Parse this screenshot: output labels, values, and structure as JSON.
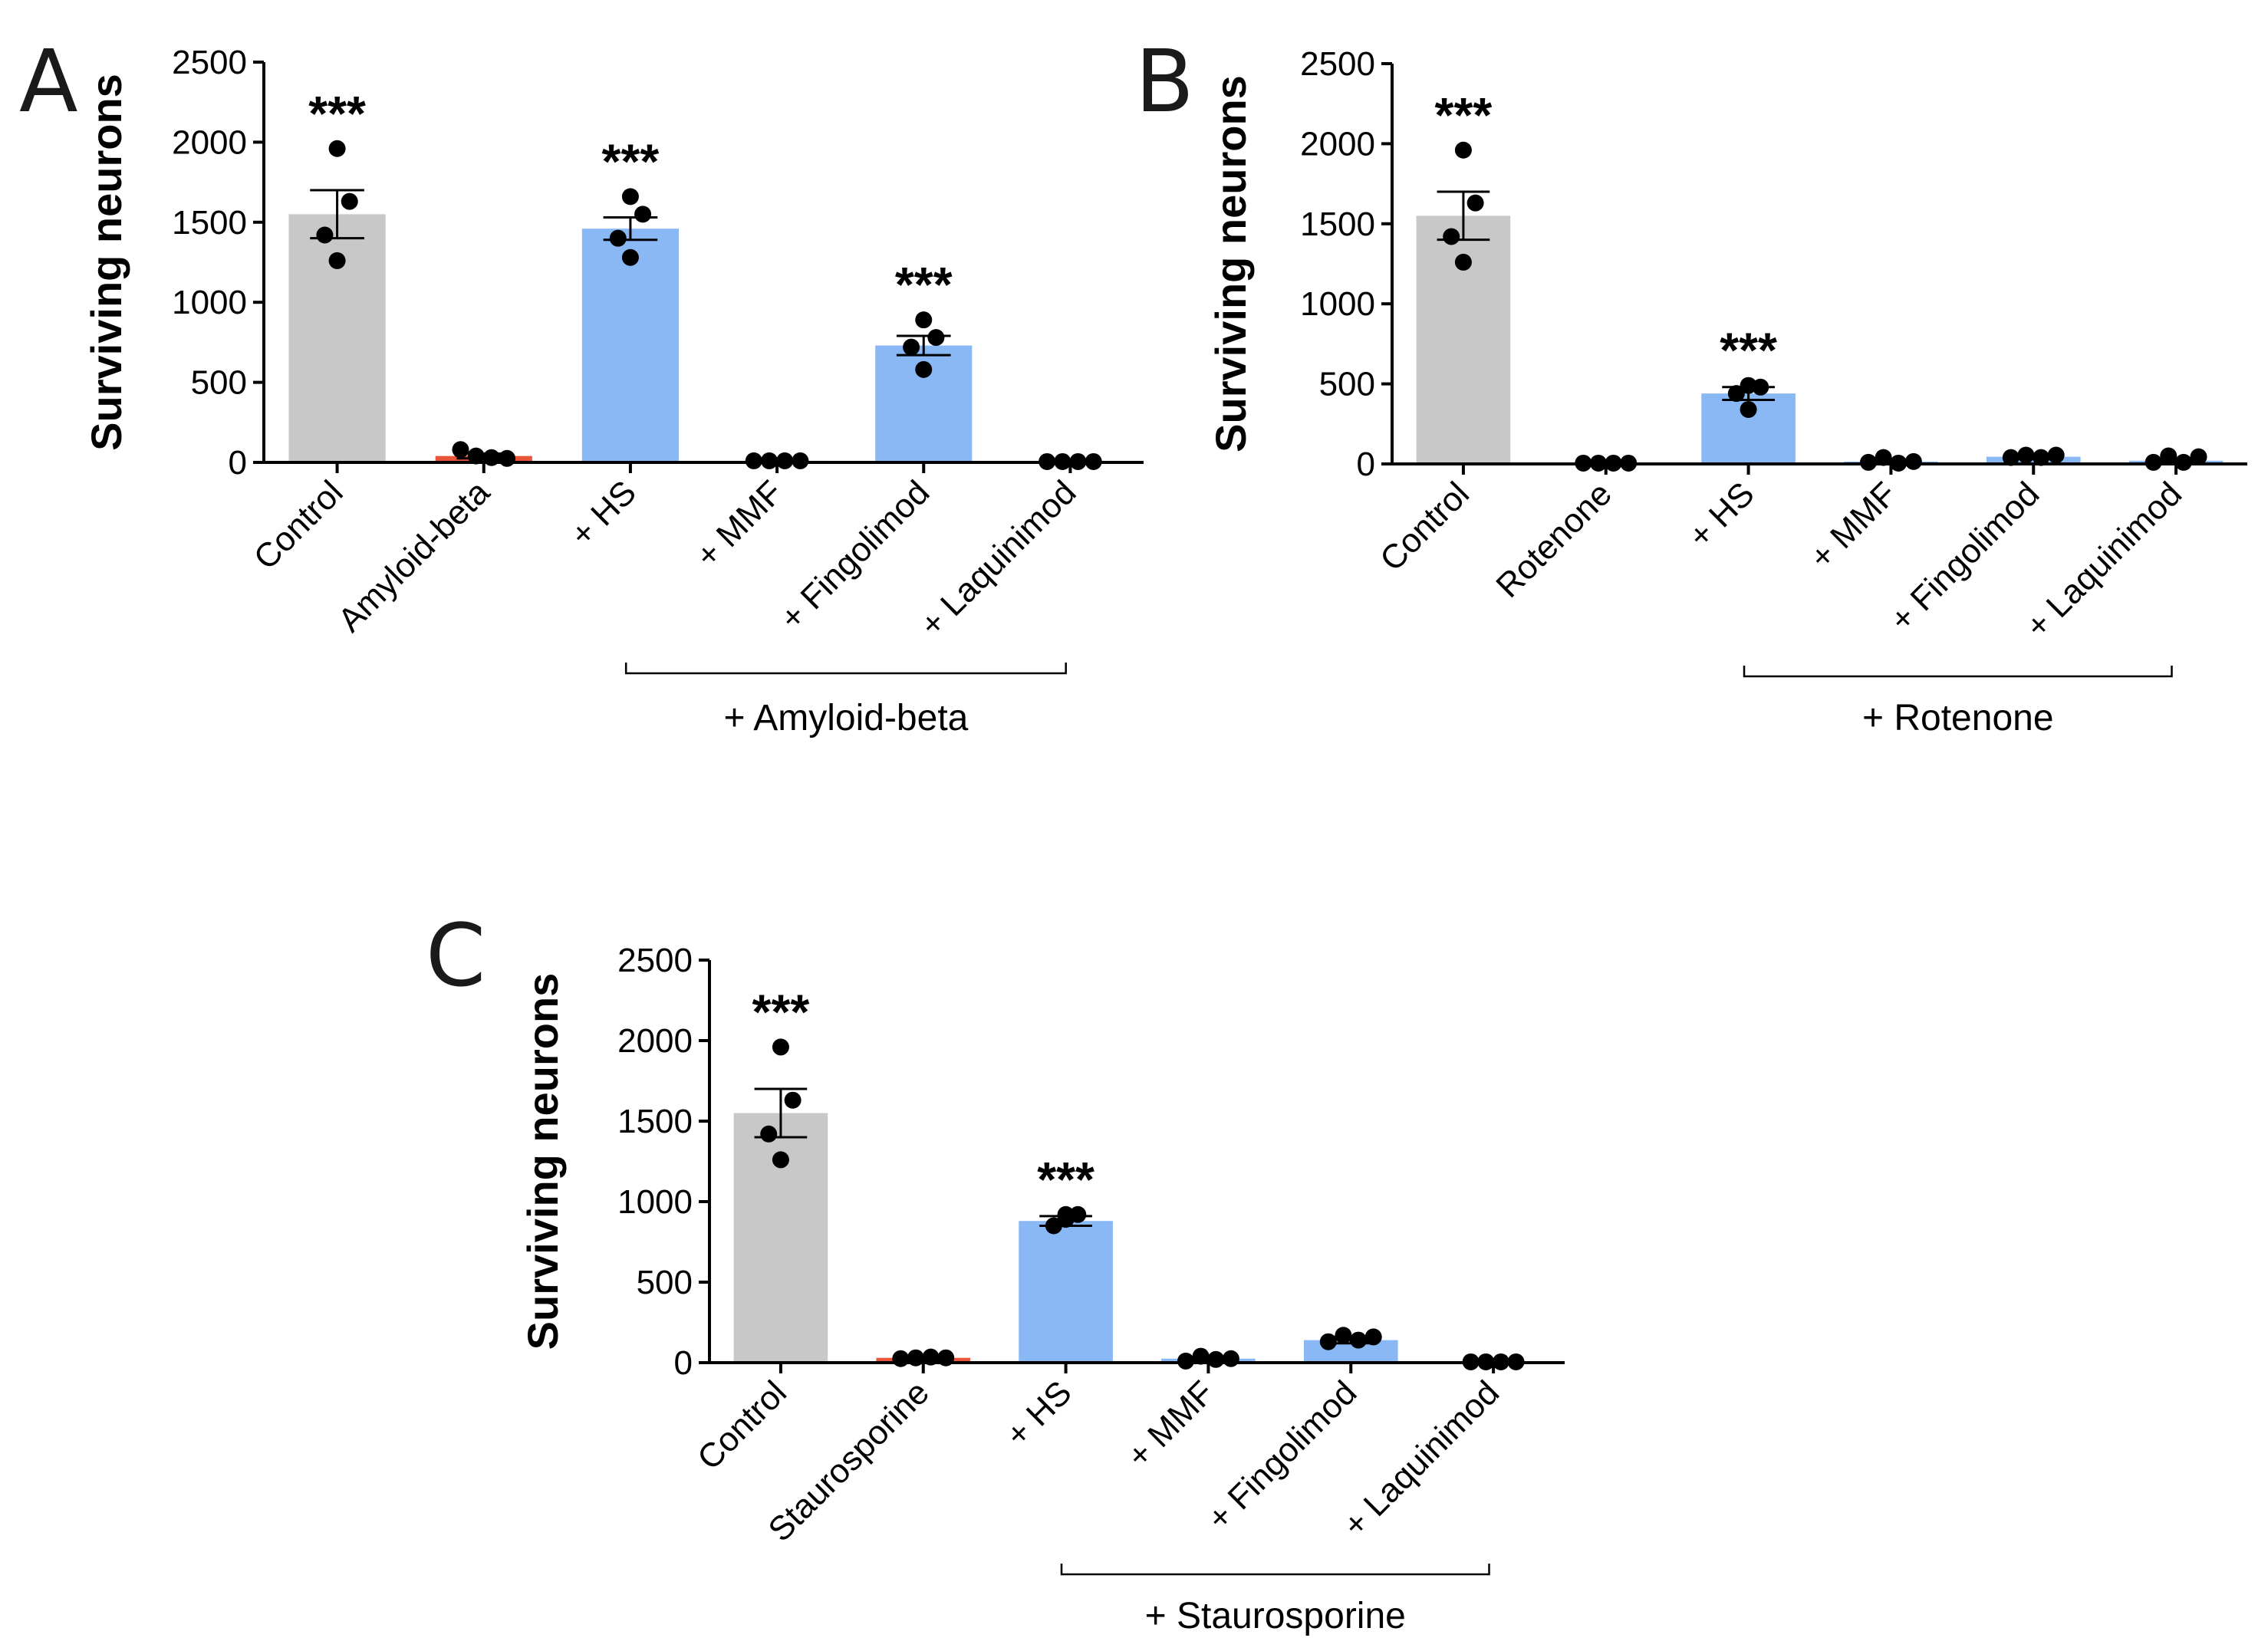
{
  "chart_data": [
    {
      "panel": "A",
      "type": "bar",
      "ylabel": "Surviving neurons",
      "ylim": [
        0,
        2500
      ],
      "yticks": [
        0,
        500,
        1000,
        1500,
        2000,
        2500
      ],
      "categories": [
        "Control",
        "Amyloid-beta",
        "+ HS",
        "+ MMF",
        "+ Fingolimod",
        "+ Laquinimod"
      ],
      "values": [
        1550,
        40,
        1460,
        10,
        730,
        5
      ],
      "errors": [
        150,
        15,
        70,
        4,
        60,
        3
      ],
      "points": [
        [
          1960,
          1630,
          1420,
          1260
        ],
        [
          80,
          40,
          30,
          25
        ],
        [
          1660,
          1550,
          1400,
          1280
        ],
        [
          10,
          10,
          10,
          10
        ],
        [
          890,
          780,
          720,
          580
        ],
        [
          5,
          5,
          5,
          5
        ]
      ],
      "bar_colors": [
        "#c8c8c8",
        "#e8553a",
        "#8ab8f5",
        "#8ab8f5",
        "#8ab8f5",
        "#8ab8f5"
      ],
      "significance": [
        "***",
        "",
        "***",
        "",
        "***",
        ""
      ],
      "group_label": "+ Amyloid-beta",
      "group_range": [
        2,
        5
      ]
    },
    {
      "panel": "B",
      "type": "bar",
      "ylabel": "Surviving neurons",
      "ylim": [
        0,
        2500
      ],
      "yticks": [
        0,
        500,
        1000,
        1500,
        2000,
        2500
      ],
      "categories": [
        "Control",
        "Rotenone",
        "+ HS",
        "+ MMF",
        "+ Fingolimod",
        "+ Laquinimod"
      ],
      "values": [
        1550,
        5,
        440,
        15,
        45,
        20
      ],
      "errors": [
        150,
        3,
        40,
        8,
        10,
        10
      ],
      "points": [
        [
          1960,
          1630,
          1420,
          1260
        ],
        [
          5,
          5,
          5,
          5
        ],
        [
          490,
          480,
          440,
          340
        ],
        [
          10,
          40,
          5,
          15
        ],
        [
          40,
          55,
          40,
          55
        ],
        [
          10,
          50,
          10,
          45
        ]
      ],
      "bar_colors": [
        "#c8c8c8",
        "#e8553a",
        "#8ab8f5",
        "#8ab8f5",
        "#8ab8f5",
        "#8ab8f5"
      ],
      "significance": [
        "***",
        "",
        "***",
        "",
        "",
        ""
      ],
      "group_label": "+ Rotenone",
      "group_range": [
        2,
        5
      ]
    },
    {
      "panel": "C",
      "type": "bar",
      "ylabel": "Surviving neurons",
      "ylim": [
        0,
        2500
      ],
      "yticks": [
        0,
        500,
        1000,
        1500,
        2000,
        2500
      ],
      "categories": [
        "Control",
        "Staurosporine",
        "+ HS",
        "+ MMF",
        "+ Fingolimod",
        "+ Laquinimod"
      ],
      "values": [
        1550,
        30,
        880,
        25,
        140,
        5
      ],
      "errors": [
        150,
        10,
        30,
        10,
        20,
        3
      ],
      "points": [
        [
          1960,
          1630,
          1420,
          1260
        ],
        [
          25,
          30,
          35,
          30
        ],
        [
          920,
          920,
          850,
          890
        ],
        [
          10,
          40,
          20,
          25
        ],
        [
          130,
          170,
          140,
          160
        ],
        [
          5,
          5,
          5,
          5
        ]
      ],
      "bar_colors": [
        "#c8c8c8",
        "#e8553a",
        "#8ab8f5",
        "#8ab8f5",
        "#8ab8f5",
        "#8ab8f5"
      ],
      "significance": [
        "***",
        "",
        "***",
        "",
        "",
        ""
      ],
      "group_label": "+ Staurosporine",
      "group_range": [
        2,
        5
      ]
    }
  ]
}
